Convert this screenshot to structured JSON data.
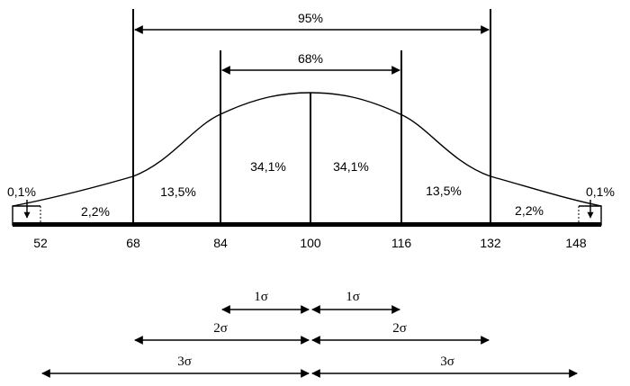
{
  "diagram": {
    "tick_labels": [
      "52",
      "68",
      "84",
      "100",
      "116",
      "132",
      "148"
    ],
    "ranges": {
      "outer": "95%",
      "inner": "68%"
    },
    "areas": {
      "tail_left": "0,1%",
      "seg_52_68": "2,2%",
      "seg_68_84": "13,5%",
      "seg_84_100": "34,1%",
      "seg_100_116": "34,1%",
      "seg_116_132": "13,5%",
      "seg_132_148": "2,2%",
      "tail_right": "0,1%"
    },
    "sigma_labels": {
      "s1_left": "1σ",
      "s1_right": "1σ",
      "s2_left": "2σ",
      "s2_right": "2σ",
      "s3_left": "3σ",
      "s3_right": "3σ"
    }
  }
}
